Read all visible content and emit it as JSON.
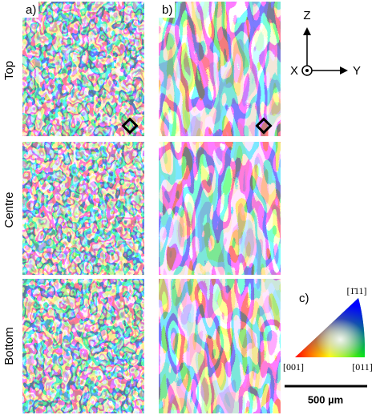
{
  "panel_labels": [
    "a)",
    "b)",
    "c)"
  ],
  "row_labels": [
    "Top",
    "Centre",
    "Bottom"
  ],
  "axes": {
    "z": "Z",
    "x": "X",
    "y": "Y"
  },
  "ipf": {
    "corner_001": "[001]",
    "corner_011": "[011]",
    "corner_111": "[1̄11]"
  },
  "scale_bar": "500 µm"
}
